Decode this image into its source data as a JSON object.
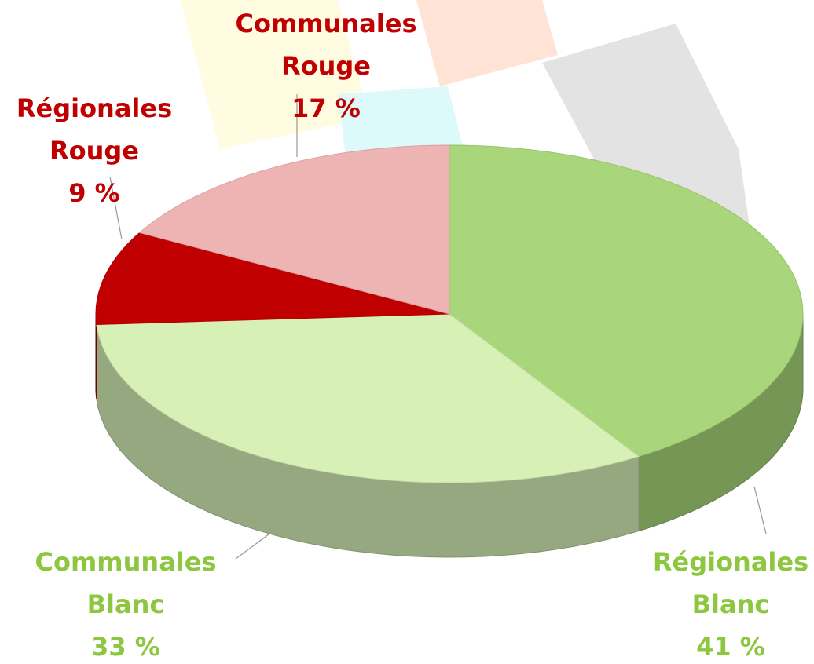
{
  "chart_data": {
    "type": "pie3d",
    "categories": [
      "Régionales Blanc",
      "Communales Blanc",
      "Régionales Rouge",
      "Communales Rouge"
    ],
    "values": [
      41,
      33,
      9,
      17
    ],
    "value_labels": [
      "41 %",
      "33 %",
      "9 %",
      "17 %"
    ],
    "colors": [
      "#a9d67a",
      "#d6f0b6",
      "#c00000",
      "#eeb4b4"
    ],
    "label_colors": [
      "#8dc63f",
      "#8dc63f",
      "#c00000",
      "#c00000"
    ]
  }
}
